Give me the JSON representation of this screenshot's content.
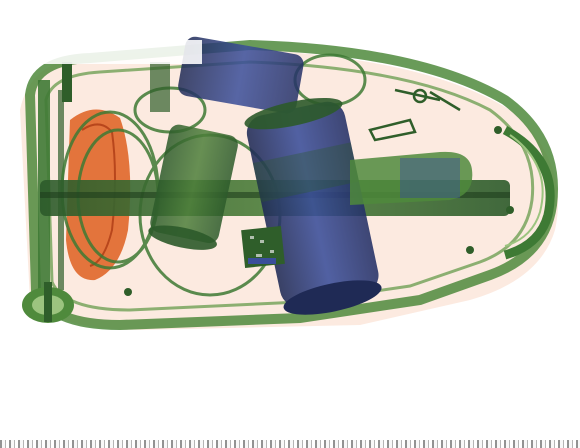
{
  "image": {
    "kind": "x-ray baggage scan",
    "subject": "luggage case",
    "colors": {
      "background": "#ffffff",
      "organic": "#e0672a",
      "organic_light": "#f3b294",
      "mixed": "#4f8a3c",
      "mixed_dark": "#2f5e2a",
      "mixed_light": "#9cc47f",
      "metal": "#2f3f8f",
      "metal_dark": "#1f2a55"
    },
    "overlay_label": ""
  }
}
